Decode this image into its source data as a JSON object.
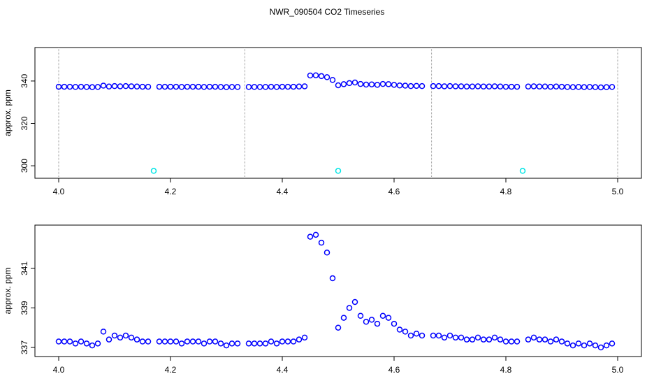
{
  "chart_data": [
    {
      "type": "scatter",
      "title": "NWR_090504  CO2 Timeseries",
      "ylabel": "approx. ppm",
      "x": [
        4.0,
        4.01,
        4.02,
        4.03,
        4.04,
        4.05,
        4.06,
        4.07,
        4.08,
        4.09,
        4.1,
        4.11,
        4.12,
        4.13,
        4.14,
        4.15,
        4.16,
        4.17,
        4.18,
        4.19,
        4.2,
        4.21,
        4.22,
        4.23,
        4.24,
        4.25,
        4.26,
        4.27,
        4.28,
        4.29,
        4.3,
        4.31,
        4.32,
        4.33,
        4.34,
        4.35,
        4.36,
        4.37,
        4.38,
        4.39,
        4.4,
        4.41,
        4.42,
        4.43,
        4.44,
        4.45,
        4.46,
        4.47,
        4.48,
        4.49,
        4.5,
        4.51,
        4.52,
        4.53,
        4.54,
        4.55,
        4.56,
        4.57,
        4.58,
        4.59,
        4.6,
        4.61,
        4.62,
        4.63,
        4.64,
        4.65,
        4.66,
        4.67,
        4.68,
        4.69,
        4.7,
        4.71,
        4.72,
        4.73,
        4.74,
        4.75,
        4.76,
        4.77,
        4.78,
        4.79,
        4.8,
        4.81,
        4.82,
        4.83,
        4.84,
        4.85,
        4.86,
        4.87,
        4.88,
        4.89,
        4.9,
        4.91,
        4.92,
        4.93,
        4.94,
        4.95,
        4.96,
        4.97,
        4.98,
        4.99
      ],
      "series": [
        {
          "color": "#0000ff",
          "values": [
            337.3,
            337.3,
            337.3,
            337.2,
            337.3,
            337.2,
            337.1,
            337.2,
            337.8,
            337.4,
            337.6,
            337.5,
            337.6,
            337.5,
            337.4,
            337.3,
            337.3,
            null,
            337.3,
            337.3,
            337.3,
            337.3,
            337.2,
            337.3,
            337.3,
            337.3,
            337.2,
            337.3,
            337.3,
            337.2,
            337.1,
            337.2,
            337.2,
            null,
            337.2,
            337.2,
            337.2,
            337.2,
            337.3,
            337.2,
            337.3,
            337.3,
            337.3,
            337.4,
            337.5,
            342.6,
            342.7,
            342.3,
            341.8,
            340.5,
            338.0,
            338.5,
            339.0,
            339.3,
            338.6,
            338.3,
            338.4,
            338.2,
            338.6,
            338.5,
            338.2,
            337.9,
            337.8,
            337.6,
            337.7,
            337.6,
            null,
            337.6,
            337.6,
            337.5,
            337.6,
            337.5,
            337.5,
            337.4,
            337.4,
            337.5,
            337.4,
            337.4,
            337.5,
            337.4,
            337.3,
            337.3,
            337.3,
            null,
            337.4,
            337.5,
            337.4,
            337.4,
            337.3,
            337.4,
            337.3,
            337.2,
            337.1,
            337.2,
            337.1,
            337.2,
            337.1,
            337.0,
            337.1,
            337.2
          ]
        },
        {
          "color": "#00e5e5",
          "values": [
            null,
            null,
            null,
            null,
            null,
            null,
            null,
            null,
            null,
            null,
            null,
            null,
            null,
            null,
            null,
            null,
            null,
            297.6,
            null,
            null,
            null,
            null,
            null,
            null,
            null,
            null,
            null,
            null,
            null,
            null,
            null,
            null,
            null,
            null,
            null,
            null,
            null,
            null,
            null,
            null,
            null,
            null,
            null,
            null,
            null,
            null,
            null,
            null,
            null,
            null,
            297.6,
            null,
            null,
            null,
            null,
            null,
            null,
            null,
            null,
            null,
            null,
            null,
            null,
            null,
            null,
            null,
            null,
            null,
            null,
            null,
            null,
            null,
            null,
            null,
            null,
            null,
            null,
            null,
            null,
            null,
            null,
            null,
            null,
            297.6,
            null,
            null,
            null,
            null,
            null,
            null,
            null,
            null,
            null,
            null,
            null,
            null,
            null,
            null,
            null,
            null
          ]
        }
      ],
      "vlines": [
        4.0,
        4.333,
        4.667,
        5.0
      ],
      "xlim": [
        3.9575,
        5.0425
      ],
      "ylim": [
        294.1,
        355.8
      ],
      "xticks": [
        {
          "value": 4,
          "label": "4.0"
        },
        4.2,
        4.4,
        4.6,
        4.8,
        {
          "value": 5,
          "label": "5.0"
        }
      ],
      "yticks": [
        300,
        320,
        340
      ]
    },
    {
      "type": "scatter",
      "ylabel": "approx. ppm",
      "x": [
        4.0,
        4.01,
        4.02,
        4.03,
        4.04,
        4.05,
        4.06,
        4.07,
        4.08,
        4.09,
        4.1,
        4.11,
        4.12,
        4.13,
        4.14,
        4.15,
        4.16,
        4.17,
        4.18,
        4.19,
        4.2,
        4.21,
        4.22,
        4.23,
        4.24,
        4.25,
        4.26,
        4.27,
        4.28,
        4.29,
        4.3,
        4.31,
        4.32,
        4.33,
        4.34,
        4.35,
        4.36,
        4.37,
        4.38,
        4.39,
        4.4,
        4.41,
        4.42,
        4.43,
        4.44,
        4.45,
        4.46,
        4.47,
        4.48,
        4.49,
        4.5,
        4.51,
        4.52,
        4.53,
        4.54,
        4.55,
        4.56,
        4.57,
        4.58,
        4.59,
        4.6,
        4.61,
        4.62,
        4.63,
        4.64,
        4.65,
        4.66,
        4.67,
        4.68,
        4.69,
        4.7,
        4.71,
        4.72,
        4.73,
        4.74,
        4.75,
        4.76,
        4.77,
        4.78,
        4.79,
        4.8,
        4.81,
        4.82,
        4.83,
        4.84,
        4.85,
        4.86,
        4.87,
        4.88,
        4.89,
        4.9,
        4.91,
        4.92,
        4.93,
        4.94,
        4.95,
        4.96,
        4.97,
        4.98,
        4.99
      ],
      "series": [
        {
          "color": "#0000ff",
          "values": [
            337.3,
            337.3,
            337.3,
            337.2,
            337.3,
            337.2,
            337.1,
            337.2,
            337.8,
            337.4,
            337.6,
            337.5,
            337.6,
            337.5,
            337.4,
            337.3,
            337.3,
            null,
            337.3,
            337.3,
            337.3,
            337.3,
            337.2,
            337.3,
            337.3,
            337.3,
            337.2,
            337.3,
            337.3,
            337.2,
            337.1,
            337.2,
            337.2,
            null,
            337.2,
            337.2,
            337.2,
            337.2,
            337.3,
            337.2,
            337.3,
            337.3,
            337.3,
            337.4,
            337.5,
            342.6,
            342.7,
            342.3,
            341.8,
            340.5,
            338.0,
            338.5,
            339.0,
            339.3,
            338.6,
            338.3,
            338.4,
            338.2,
            338.6,
            338.5,
            338.2,
            337.9,
            337.8,
            337.6,
            337.7,
            337.6,
            null,
            337.6,
            337.6,
            337.5,
            337.6,
            337.5,
            337.5,
            337.4,
            337.4,
            337.5,
            337.4,
            337.4,
            337.5,
            337.4,
            337.3,
            337.3,
            337.3,
            null,
            337.4,
            337.5,
            337.4,
            337.4,
            337.3,
            337.4,
            337.3,
            337.2,
            337.1,
            337.2,
            337.1,
            337.2,
            337.1,
            337.0,
            337.1,
            337.2
          ]
        }
      ],
      "xlim": [
        3.9575,
        5.0425
      ],
      "ylim": [
        336.54,
        343.19
      ],
      "xticks": [
        {
          "value": 4,
          "label": "4.0"
        },
        4.2,
        4.4,
        4.6,
        4.8,
        {
          "value": 5,
          "label": "5.0"
        }
      ],
      "yticks": [
        337,
        339,
        341
      ]
    }
  ]
}
